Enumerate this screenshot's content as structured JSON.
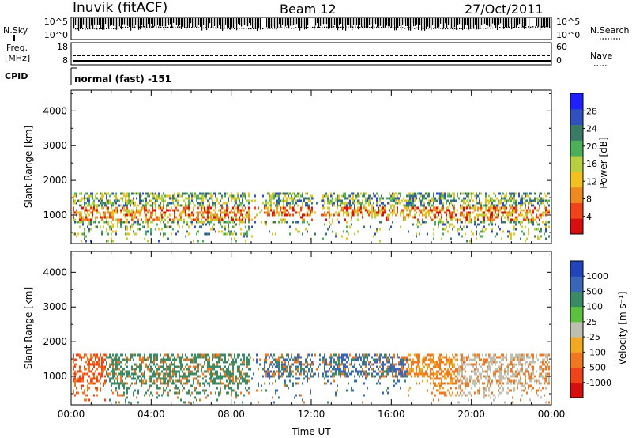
{
  "header": {
    "station": "Inuvik (fitACF)",
    "beam": "Beam 12",
    "date": "27/Oct/2011"
  },
  "status_panels": {
    "nsky_label": "N.Sky",
    "nsky_ticks": [
      "10^5",
      "10^0"
    ],
    "nsearch_label": "N.Search",
    "nsearch_ticks": [
      "10^5",
      "10^0"
    ],
    "freq_label_line1": "Freq.",
    "freq_label_line2": "[MHz]",
    "freq_ticks": [
      "18",
      "8"
    ],
    "nave_label": "Nave",
    "nave_ticks": [
      "60",
      "0"
    ],
    "cpid_label": "CPID",
    "cpid_value": "normal (fast) -151"
  },
  "chart_data": [
    {
      "type": "heatmap",
      "name": "power-panel",
      "ylabel": "Slant Range [km]",
      "yticks": [
        "4000",
        "3000",
        "2000",
        "1000"
      ],
      "ylim": [
        180,
        4600
      ],
      "colorbar_label": "Power [dB]",
      "colorbar_ticks": [
        "28",
        "24",
        "20",
        "16",
        "12",
        "8",
        "4"
      ],
      "colors": [
        "#1f1fff",
        "#3050c0",
        "#3a7a66",
        "#4caf5a",
        "#b8d040",
        "#f2c020",
        "#f08a20",
        "#ee4418",
        "#d80f0f"
      ]
    },
    {
      "type": "heatmap",
      "name": "velocity-panel",
      "ylabel": "Slant Range [km]",
      "yticks": [
        "4000",
        "3000",
        "2000",
        "1000"
      ],
      "ylim": [
        180,
        4600
      ],
      "xlabel": "Time UT",
      "xticks": [
        "00:00",
        "04:00",
        "08:00",
        "12:00",
        "16:00",
        "20:00",
        "00:00"
      ],
      "colorbar_label": "Velocity [m s⁻¹]",
      "colorbar_ticks": [
        "1000",
        "500",
        "100",
        "25",
        "-25",
        "-100",
        "-500",
        "-1000"
      ],
      "colors": [
        "#2244bb",
        "#3a66b8",
        "#3a8a66",
        "#5cc040",
        "#bfbfb0",
        "#f2a820",
        "#f07820",
        "#ee4418",
        "#d80f0f"
      ]
    }
  ]
}
